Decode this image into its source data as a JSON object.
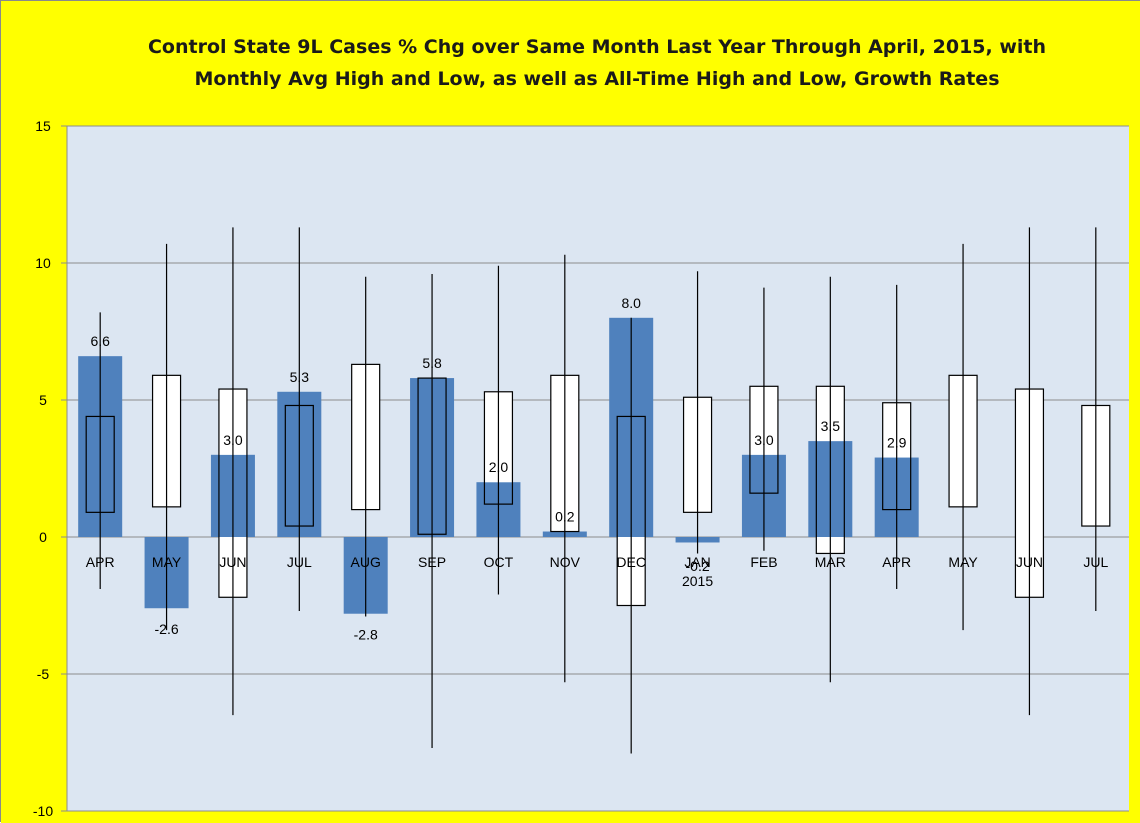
{
  "colors": {
    "frame_background": "#ffff00",
    "plot_background": "#dce6f2",
    "bar_fill": "#4f81bd",
    "gridline": "#8c8c8c",
    "box_fill": "#ffffff",
    "line": "#000000"
  },
  "chart_data": {
    "type": "bar",
    "title": [
      "Control State 9L Cases % Chg over Same Month Last Year Through April, 2015, with",
      "Monthly Avg High and Low, as well as All-Time High and Low,   Growth Rates"
    ],
    "xlabel": "",
    "ylabel": "",
    "ylim": [
      -10,
      15
    ],
    "y_ticks": [
      15,
      10,
      5,
      0,
      -5,
      -10
    ],
    "grid": true,
    "legend": "none",
    "categories": [
      [
        "APR"
      ],
      [
        "MAY"
      ],
      [
        "JUN"
      ],
      [
        "JUL"
      ],
      [
        "AUG"
      ],
      [
        "SEP"
      ],
      [
        "OCT"
      ],
      [
        "NOV"
      ],
      [
        "DEC"
      ],
      [
        "JAN",
        "2015"
      ],
      [
        "FEB"
      ],
      [
        "MAR"
      ],
      [
        "APR"
      ],
      [
        "MAY"
      ],
      [
        "JUN"
      ],
      [
        "JUL"
      ]
    ],
    "series": [
      {
        "type": "bar",
        "values": [
          6.6,
          -2.6,
          3.0,
          5.3,
          -2.8,
          5.8,
          2.0,
          0.2,
          8.0,
          -0.2,
          3.0,
          3.5,
          2.9,
          null,
          null,
          null
        ],
        "labels": [
          "6.6",
          "-2.6",
          "3.0",
          "5.3",
          "-2.8",
          "5.8",
          "2.0",
          "0.2",
          "8.0",
          "-0.2",
          "3.0",
          "3.5",
          "2.9",
          "",
          "",
          ""
        ]
      },
      {
        "type": "box",
        "avg_high": [
          4.4,
          5.9,
          5.4,
          4.8,
          6.3,
          5.8,
          5.3,
          5.9,
          4.4,
          5.1,
          5.5,
          5.5,
          4.9,
          5.9,
          5.4,
          4.8
        ],
        "avg_low": [
          0.9,
          1.1,
          -2.2,
          0.4,
          1.0,
          0.1,
          1.2,
          0.2,
          -2.5,
          0.9,
          1.6,
          -0.6,
          1.0,
          1.1,
          -2.2,
          0.4
        ]
      },
      {
        "type": "range",
        "all_time_high": [
          8.2,
          10.7,
          11.3,
          11.3,
          9.5,
          9.6,
          9.9,
          10.3,
          8.0,
          9.7,
          9.1,
          9.5,
          9.2,
          10.7,
          11.3,
          11.3
        ],
        "all_time_low": [
          -1.9,
          -3.4,
          -6.5,
          -2.7,
          -2.9,
          -7.7,
          -2.1,
          -5.3,
          -7.9,
          -0.6,
          -0.5,
          -5.3,
          -1.9,
          -3.4,
          -6.5,
          -2.7
        ]
      }
    ]
  }
}
